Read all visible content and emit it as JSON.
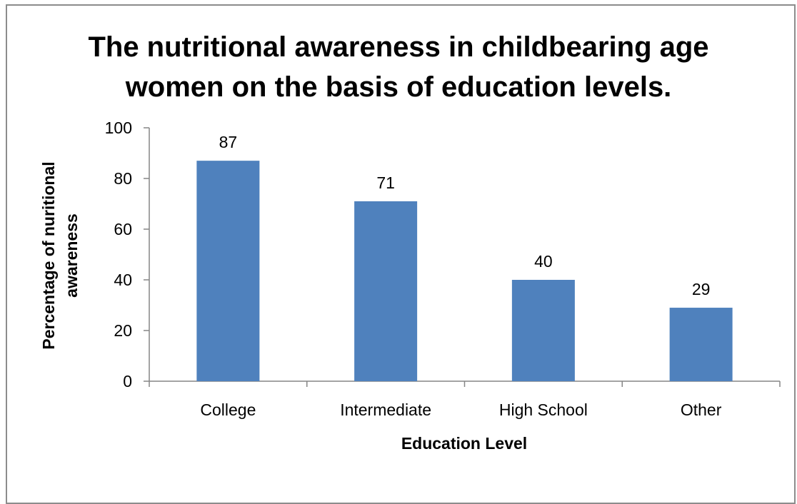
{
  "chart_data": {
    "type": "bar",
    "title_lines": [
      "The nutritional awareness in childbearing age",
      "women on the basis of education levels."
    ],
    "xlabel": "Education Level",
    "ylabel_lines": [
      "Percentage of  nuritional",
      "awareness"
    ],
    "categories": [
      "College",
      "Intermediate",
      "High School",
      "Other"
    ],
    "values": [
      87,
      71,
      40,
      29
    ],
    "data_labels": [
      "87",
      "71",
      "40",
      "29"
    ],
    "ylim": [
      0,
      100
    ],
    "yticks": [
      0,
      20,
      40,
      60,
      80,
      100
    ],
    "grid": false,
    "legend": "none",
    "bar_color": "#4f81bd",
    "axis_color": "#868686"
  }
}
